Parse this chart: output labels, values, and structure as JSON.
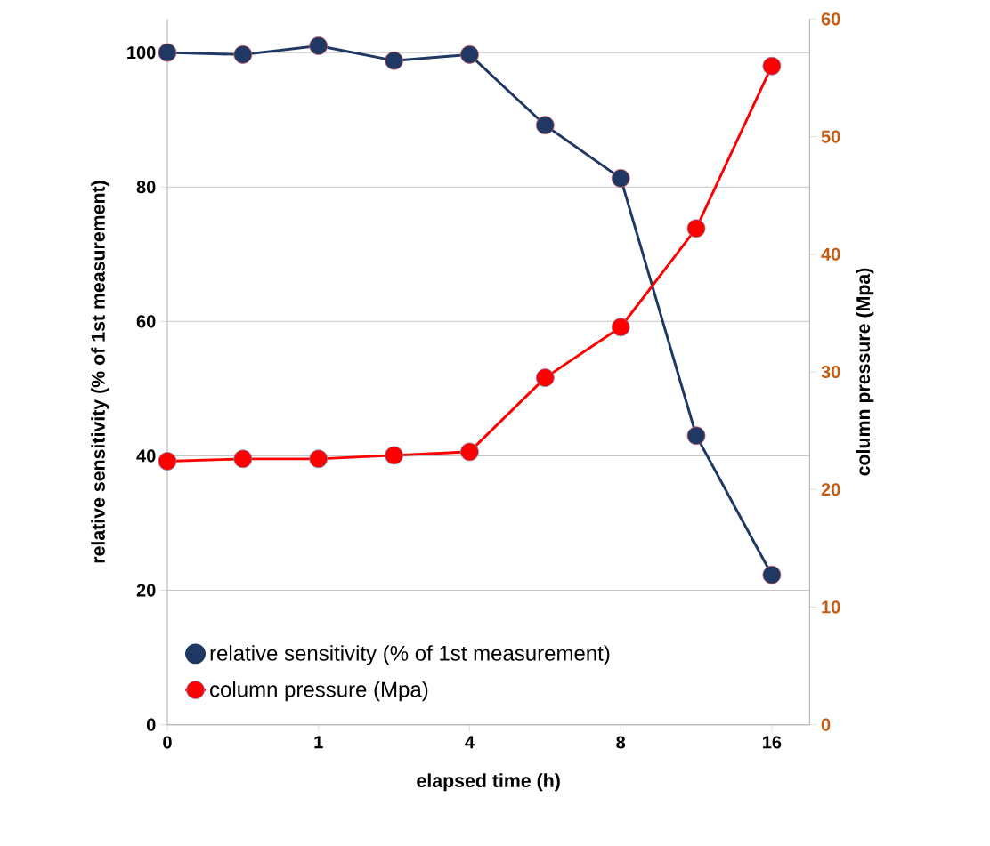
{
  "chart_data": {
    "type": "line",
    "xlabel": "elapsed time (h)",
    "ylabel": "relative sensitivity (% of 1st measurement)",
    "y2label": "column pressure (Mpa)",
    "categories": [
      "0",
      null,
      "1",
      null,
      "4",
      null,
      "8",
      null,
      "16"
    ],
    "series": [
      {
        "name": "relative sensitivity (% of 1st measurement)",
        "color": "#1f3864",
        "values": [
          100,
          99.7,
          101,
          98.8,
          99.7,
          89.2,
          81.3,
          43,
          22.3
        ]
      },
      {
        "name": "column pressure (Mpa)",
        "color": "#ff0000",
        "axis": "y2",
        "values": [
          22.4,
          22.6,
          22.6,
          22.9,
          23.2,
          29.5,
          33.8,
          42.2,
          56.0
        ]
      }
    ],
    "ylim": [
      0,
      105
    ],
    "yticks": [
      0,
      20,
      40,
      60,
      80,
      100
    ],
    "y2lim": [
      0,
      60
    ],
    "y2ticks": [
      0,
      10,
      20,
      30,
      40,
      50,
      60
    ],
    "grid": "y",
    "legend": "bottom",
    "marker": "circle",
    "line_style": "solid"
  }
}
